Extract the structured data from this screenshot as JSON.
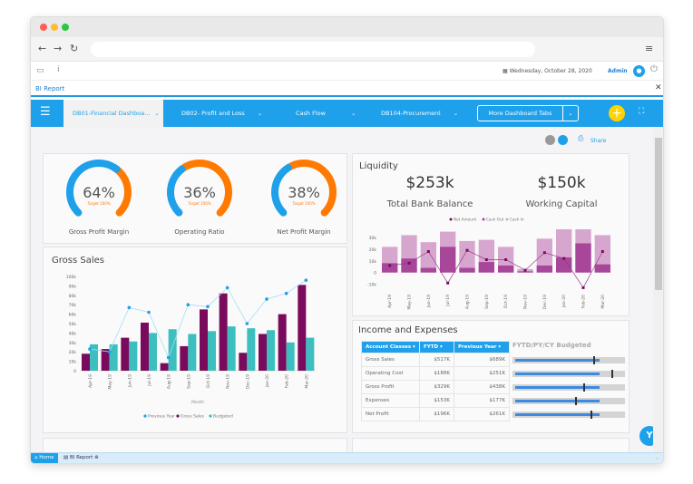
{
  "toolbar": {
    "date": "Wednesday, October 28, 2020",
    "user": "Admin"
  },
  "app": {
    "title": "BI Report"
  },
  "nav": {
    "tabs": [
      {
        "label": "DB01-Financial Dashboa..."
      },
      {
        "label": "DB02- Profit and Loss"
      },
      {
        "label": "Cash Flow"
      },
      {
        "label": "DB104-Procurement"
      }
    ],
    "more": "More Dashboard Tabs",
    "share": "Share"
  },
  "gauges": [
    {
      "value": "64%",
      "fraction": 0.64,
      "target": "Target 100%",
      "label": "Gross Profit Margin"
    },
    {
      "value": "36%",
      "fraction": 0.36,
      "target": "Target 100%",
      "label": "Operating Ratio"
    },
    {
      "value": "38%",
      "fraction": 0.38,
      "target": "Target 100%",
      "label": "Net Profit Margin"
    }
  ],
  "colors": {
    "accent": "#1ea0ea",
    "orange": "#ff7a00",
    "gross": "#7a0a5c",
    "budget": "#3dbfbf",
    "prev": "#1ea0ea",
    "cashin": "#d7a6cf",
    "cashout": "#a8479a",
    "net": "#7a0a5c"
  },
  "liquidity": {
    "title": "Liquidity",
    "bank_value": "$253k",
    "bank_label": "Total Bank Balance",
    "wc_value": "$150k",
    "wc_label": "Working Capital"
  },
  "gross_sales": {
    "title": "Gross Sales"
  },
  "chart_data": [
    {
      "type": "bar",
      "title": "Gross Sales",
      "xlabel": "Month",
      "ylabel": "",
      "ylim": [
        0,
        100
      ],
      "yticks": [
        "0",
        "10k",
        "20k",
        "30k",
        "40k",
        "50k",
        "60k",
        "70k",
        "80k",
        "90k",
        "100k"
      ],
      "categories": [
        "Apr-19",
        "May-19",
        "Jun-19",
        "Jul-19",
        "Aug-19",
        "Sep-19",
        "Oct-19",
        "Nov-19",
        "Dec-19",
        "Jan-20",
        "Feb-20",
        "Mar-20"
      ],
      "series": [
        {
          "name": "Previous Year",
          "type": "line",
          "values": [
            23,
            20,
            67,
            62,
            14,
            70,
            68,
            88,
            50,
            76,
            82,
            96
          ]
        },
        {
          "name": "Gross Sales",
          "type": "bar",
          "values": [
            18,
            23,
            35,
            51,
            8,
            26,
            65,
            82,
            19,
            39,
            60,
            91
          ]
        },
        {
          "name": "Budgeted",
          "type": "bar",
          "values": [
            28,
            28,
            31,
            40,
            44,
            39,
            42,
            47,
            45,
            43,
            30,
            35
          ]
        }
      ],
      "legend": "bottom"
    },
    {
      "type": "bar",
      "ylim": [
        -15,
        37
      ],
      "yticks": [
        "-10k",
        "0",
        "10k",
        "20k",
        "30k"
      ],
      "categories": [
        "Apr-19",
        "May-19",
        "Jun-19",
        "Jul-19",
        "Aug-19",
        "Sep-19",
        "Oct-19",
        "Nov-19",
        "Dec-19",
        "Jan-20",
        "Feb-20",
        "Mar-20"
      ],
      "series": [
        {
          "name": "Net Amount",
          "type": "line",
          "values": [
            6,
            8,
            18,
            -9,
            19,
            11,
            11,
            2,
            17,
            12,
            -13,
            18
          ]
        },
        {
          "name": "Cash Out",
          "type": "bar",
          "values": [
            8,
            12,
            4,
            22,
            4,
            9,
            6,
            1,
            6,
            13,
            25,
            7
          ]
        },
        {
          "name": "Cash In",
          "type": "bar",
          "values": [
            22,
            32,
            26,
            35,
            27,
            28,
            22,
            3,
            29,
            37,
            37,
            32
          ]
        }
      ],
      "legend": "top"
    }
  ],
  "income": {
    "title": "Income and Expenses",
    "headers": [
      "Account Classes",
      "FYTD",
      "Previous Year"
    ],
    "bullet_title": "FYTD/PY/CY Budgeted",
    "rows": [
      {
        "account": "Gross Sales",
        "fytd": "$517K",
        "py": "$689K",
        "fill": 0.75,
        "marker": 0.72
      },
      {
        "account": "Operating Cost",
        "fytd": "$188K",
        "py": "$251K",
        "fill": 0.75,
        "marker": 0.88
      },
      {
        "account": "Gross Profit",
        "fytd": "$329K",
        "py": "$438K",
        "fill": 0.75,
        "marker": 0.63
      },
      {
        "account": "Expenses",
        "fytd": "$153K",
        "py": "$177K",
        "fill": 0.75,
        "marker": 0.56
      },
      {
        "account": "Net Profit",
        "fytd": "$196K",
        "py": "$261K",
        "fill": 0.75,
        "marker": 0.69
      }
    ]
  },
  "taskbar": {
    "home": "Home",
    "report": "BI Report"
  }
}
